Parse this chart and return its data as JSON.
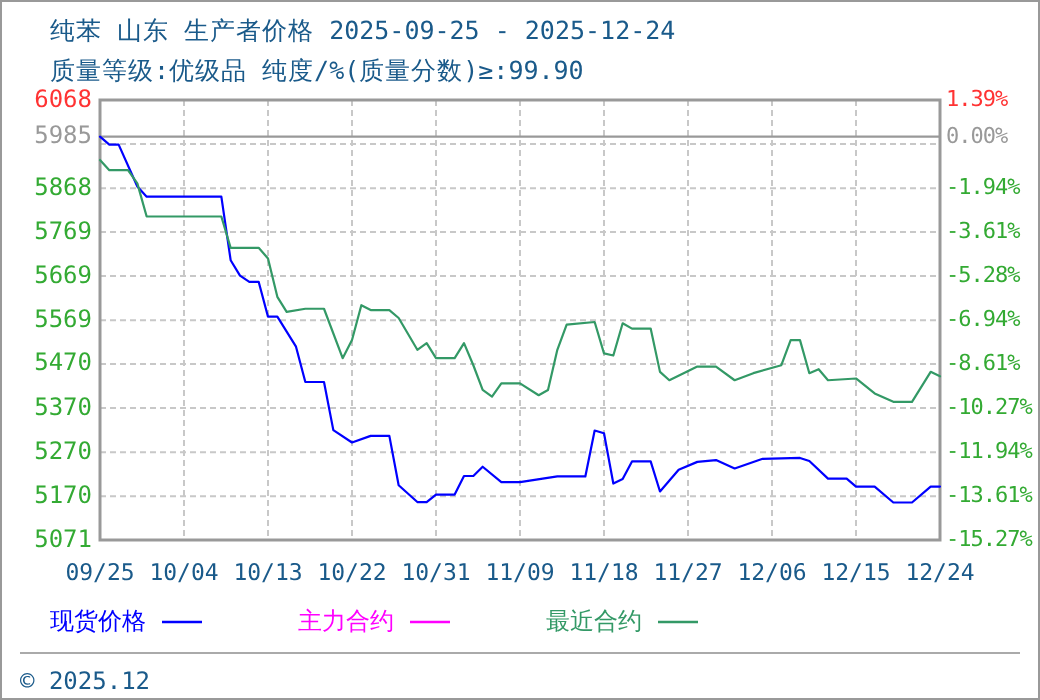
{
  "chart_data": {
    "type": "line",
    "title": "纯苯 山东 生产者价格 2025-09-25 - 2025-12-24",
    "subtitle": "质量等级:优级品 纯度/%(质量分数)≥:99.90",
    "annotations": [
      "© 2025.12"
    ],
    "xlim": [
      "2025-09-25",
      "2025-12-24"
    ],
    "xticks": [
      {
        "value": "2025-09-25",
        "label": "09/25"
      },
      {
        "value": "2025-10-04",
        "label": "10/04"
      },
      {
        "value": "2025-10-13",
        "label": "10/13"
      },
      {
        "value": "2025-10-22",
        "label": "10/22"
      },
      {
        "value": "2025-10-31",
        "label": "10/31"
      },
      {
        "value": "2025-11-09",
        "label": "11/09"
      },
      {
        "value": "2025-11-18",
        "label": "11/18"
      },
      {
        "value": "2025-11-27",
        "label": "11/27"
      },
      {
        "value": "2025-12-06",
        "label": "12/06"
      },
      {
        "value": "2025-12-15",
        "label": "12/15"
      },
      {
        "value": "2025-12-24",
        "label": "12/24"
      }
    ],
    "ylim": [
      5071,
      6068
    ],
    "yticks": [
      5071,
      5170,
      5270,
      5370,
      5470,
      5569,
      5669,
      5769,
      5868,
      {
        "value": 5968.4,
        "label": null
      },
      6068
    ],
    "y2lim": [
      -15.27,
      1.39
    ],
    "y2ticks": [
      {
        "value": -15.27,
        "label": "-15.27%"
      },
      {
        "value": -13.61,
        "label": "-13.61%"
      },
      {
        "value": -11.94,
        "label": "-11.94%"
      },
      {
        "value": -10.27,
        "label": "-10.27%"
      },
      {
        "value": -8.61,
        "label": "-8.61%"
      },
      {
        "value": -6.94,
        "label": "-6.94%"
      },
      {
        "value": -5.28,
        "label": "-5.28%"
      },
      {
        "value": -3.61,
        "label": "-3.61%"
      },
      {
        "value": -1.94,
        "label": "-1.94%"
      },
      {
        "value": 0,
        "label": "0.00%"
      },
      {
        "value": 1.39,
        "label": "1.39%"
      }
    ],
    "ref_lines": [
      {
        "axis": "y",
        "value": 5985,
        "label": "5985",
        "color": "#999999"
      }
    ],
    "grid": true,
    "legend": "bottom",
    "series": [
      {
        "name": "现货价格",
        "color": "#0000ff",
        "x": [
          "2025-09-25",
          "2025-09-26",
          "2025-09-27",
          "2025-09-29",
          "2025-09-30",
          "2025-10-08",
          "2025-10-09",
          "2025-10-10",
          "2025-10-11",
          "2025-10-12",
          "2025-10-13",
          "2025-10-14",
          "2025-10-16",
          "2025-10-17",
          "2025-10-19",
          "2025-10-20",
          "2025-10-22",
          "2025-10-24",
          "2025-10-26",
          "2025-10-27",
          "2025-10-29",
          "2025-10-30",
          "2025-10-31",
          "2025-11-02",
          "2025-11-03",
          "2025-11-04",
          "2025-11-05",
          "2025-11-07",
          "2025-11-09",
          "2025-11-13",
          "2025-11-16",
          "2025-11-17",
          "2025-11-18",
          "2025-11-19",
          "2025-11-20",
          "2025-11-21",
          "2025-11-23",
          "2025-11-24",
          "2025-11-26",
          "2025-11-28",
          "2025-11-30",
          "2025-12-02",
          "2025-12-05",
          "2025-12-09",
          "2025-12-10",
          "2025-12-12",
          "2025-12-14",
          "2025-12-15",
          "2025-12-17",
          "2025-12-19",
          "2025-12-21",
          "2025-12-23",
          "2025-12-24"
        ],
        "values": [
          5985,
          5967,
          5967,
          5872,
          5849,
          5849,
          5705,
          5670,
          5656,
          5656,
          5577,
          5577,
          5509,
          5429,
          5429,
          5320,
          5292,
          5307,
          5307,
          5195,
          5157,
          5157,
          5174,
          5174,
          5216,
          5216,
          5237,
          5202,
          5202,
          5215,
          5215,
          5319,
          5313,
          5199,
          5209,
          5249,
          5249,
          5181,
          5230,
          5248,
          5252,
          5233,
          5255,
          5257,
          5250,
          5210,
          5210,
          5192,
          5192,
          5156,
          5156,
          5192,
          5192
        ]
      },
      {
        "name": "主力合约",
        "color": "#ff00ff"
      },
      {
        "name": "最近合约",
        "color": "#339966",
        "x": [
          "2025-09-25",
          "2025-09-26",
          "2025-09-28",
          "2025-09-29",
          "2025-09-30",
          "2025-10-08",
          "2025-10-09",
          "2025-10-12",
          "2025-10-13",
          "2025-10-14",
          "2025-10-15",
          "2025-10-17",
          "2025-10-19",
          "2025-10-21",
          "2025-10-22",
          "2025-10-23",
          "2025-10-24",
          "2025-10-26",
          "2025-10-27",
          "2025-10-29",
          "2025-10-30",
          "2025-10-31",
          "2025-11-02",
          "2025-11-03",
          "2025-11-04",
          "2025-11-05",
          "2025-11-06",
          "2025-11-07",
          "2025-11-09",
          "2025-11-11",
          "2025-11-12",
          "2025-11-13",
          "2025-11-14",
          "2025-11-17",
          "2025-11-18",
          "2025-11-19",
          "2025-11-20",
          "2025-11-21",
          "2025-11-23",
          "2025-11-24",
          "2025-11-25",
          "2025-11-28",
          "2025-11-30",
          "2025-12-02",
          "2025-12-04",
          "2025-12-07",
          "2025-12-08",
          "2025-12-09",
          "2025-12-10",
          "2025-12-11",
          "2025-12-12",
          "2025-12-15",
          "2025-12-17",
          "2025-12-19",
          "2025-12-21",
          "2025-12-23",
          "2025-12-24"
        ],
        "values": [
          5932,
          5909,
          5909,
          5879,
          5804,
          5804,
          5733,
          5733,
          5709,
          5622,
          5588,
          5595,
          5595,
          5483,
          5524,
          5603,
          5592,
          5592,
          5574,
          5502,
          5517,
          5483,
          5483,
          5517,
          5467,
          5411,
          5396,
          5426,
          5426,
          5399,
          5411,
          5502,
          5559,
          5565,
          5494,
          5489,
          5562,
          5550,
          5550,
          5452,
          5433,
          5464,
          5464,
          5433,
          5449,
          5467,
          5524,
          5524,
          5449,
          5458,
          5433,
          5437,
          5403,
          5384,
          5384,
          5452,
          5442
        ]
      }
    ]
  }
}
